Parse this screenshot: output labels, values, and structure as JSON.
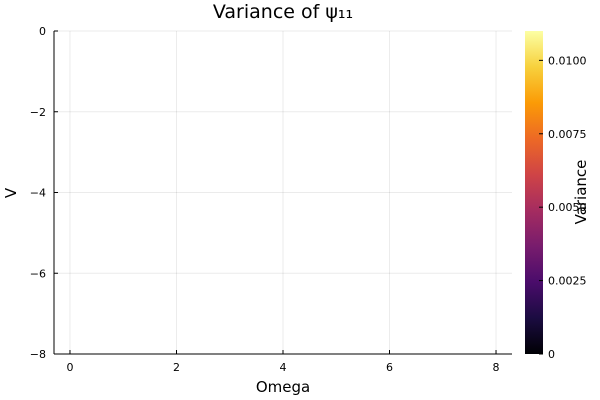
{
  "chart_data": {
    "type": "heatmap",
    "title": "Variance of ψ₁₁",
    "xlabel": "Omega",
    "ylabel": "V",
    "xlim": [
      -0.3,
      8.3
    ],
    "ylim": [
      -8,
      0
    ],
    "x_ticks": [
      {
        "value": 0,
        "label": "0"
      },
      {
        "value": 2,
        "label": "2"
      },
      {
        "value": 4,
        "label": "4"
      },
      {
        "value": 6,
        "label": "6"
      },
      {
        "value": 8,
        "label": "8"
      }
    ],
    "y_ticks": [
      {
        "value": 0,
        "label": "0"
      },
      {
        "value": -2,
        "label": "−2"
      },
      {
        "value": -4,
        "label": "−4"
      },
      {
        "value": -6,
        "label": "−6"
      },
      {
        "value": -8,
        "label": "−8"
      }
    ],
    "grid": true,
    "data": [],
    "colorbar": {
      "label": "Variance",
      "colormap": "inferno",
      "range": [
        0,
        0.011
      ],
      "ticks": [
        {
          "value": 0,
          "label": "0"
        },
        {
          "value": 0.0025,
          "label": "0.0025"
        },
        {
          "value": 0.005,
          "label": "0.0050"
        },
        {
          "value": 0.0075,
          "label": "0.0075"
        },
        {
          "value": 0.01,
          "label": "0.0100"
        }
      ],
      "stops": [
        "#000004",
        "#1b0c41",
        "#4a0c6b",
        "#781c6d",
        "#a52c60",
        "#cf4446",
        "#ed6925",
        "#fb9b06",
        "#f7d13d",
        "#fcffa4"
      ]
    }
  }
}
